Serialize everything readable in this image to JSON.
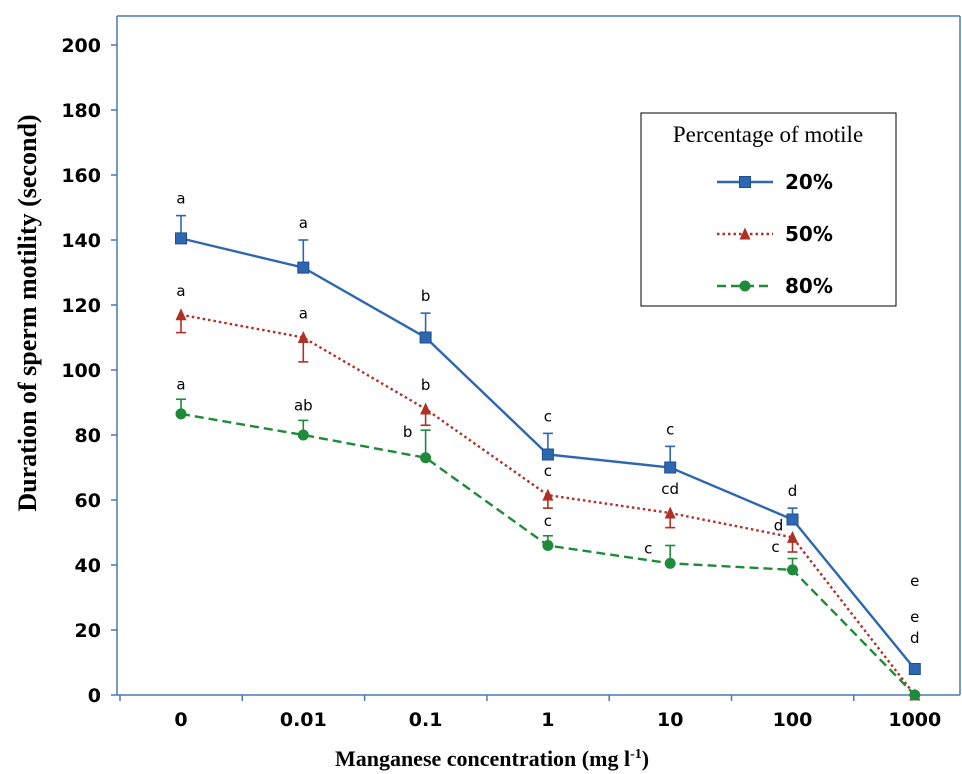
{
  "chart_data": {
    "type": "line",
    "xlabel": "Manganese concentration (mg l",
    "xlabel_sup": "-1",
    "xlabel_end": ")",
    "ylabel": "Duration of sperm motility (second)",
    "categories": [
      "0",
      "0.01",
      "0.1",
      "1",
      "10",
      "100",
      "1000"
    ],
    "ylim": [
      0,
      200
    ],
    "yticks": [
      "0",
      "20",
      "40",
      "60",
      "80",
      "100",
      "120",
      "140",
      "160",
      "180",
      "200"
    ],
    "legend": {
      "title": "Percentage of motile",
      "position": "top-right"
    },
    "grid": false,
    "series": [
      {
        "name": "20%",
        "color": "#2e67b1",
        "marker": "square",
        "line": "solid",
        "values": [
          140.5,
          131.5,
          110,
          74,
          70,
          54,
          8
        ],
        "error": [
          7,
          8.5,
          7.5,
          6.5,
          6.5,
          3.5,
          0
        ],
        "error_dir": "up",
        "letters": [
          "a",
          "a",
          "b",
          "c",
          "c",
          "d",
          "e"
        ]
      },
      {
        "name": "50%",
        "color": "#b03025",
        "marker": "triangle",
        "line": "dotted",
        "values": [
          117,
          110,
          88,
          61.5,
          56,
          48.5,
          0
        ],
        "error": [
          5.5,
          7.5,
          5,
          4,
          4.5,
          4.5,
          0
        ],
        "error_dir": "down",
        "letters": [
          "a",
          "a",
          "b",
          "c",
          "cd",
          "d",
          "e"
        ]
      },
      {
        "name": "80%",
        "color": "#1f8a3a",
        "marker": "circle",
        "line": "dashed",
        "values": [
          86.5,
          80,
          73,
          46,
          40.5,
          38.5,
          0
        ],
        "error": [
          4.5,
          4.5,
          8.5,
          3,
          5.5,
          3.5,
          0
        ],
        "error_dir": "up",
        "letters": [
          "a",
          "ab",
          "b",
          "c",
          "c",
          "c",
          "d"
        ]
      }
    ]
  }
}
